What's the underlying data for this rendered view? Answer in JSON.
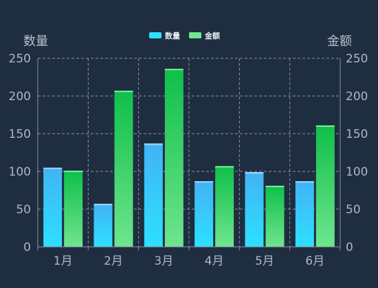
{
  "chart_data": {
    "type": "bar",
    "categories": [
      "1月",
      "2月",
      "3月",
      "4月",
      "5月",
      "6月"
    ],
    "series": [
      {
        "name": "数量",
        "values": [
          105,
          57,
          137,
          87,
          99,
          87
        ],
        "color_top": "#41b3f5",
        "color_bottom": "#2de0ff"
      },
      {
        "name": "金额",
        "values": [
          101,
          207,
          236,
          107,
          81,
          161
        ],
        "color_top": "#0fbf49",
        "color_bottom": "#6fe58f"
      }
    ],
    "y_left": {
      "label": "数量",
      "min": 0,
      "max": 250,
      "ticks": [
        0,
        50,
        100,
        150,
        200,
        250
      ]
    },
    "y_right": {
      "label": "金额",
      "min": 0,
      "max": 250,
      "ticks": [
        0,
        50,
        100,
        150,
        200,
        250
      ]
    },
    "grid": true,
    "legend_position": "top-center"
  }
}
